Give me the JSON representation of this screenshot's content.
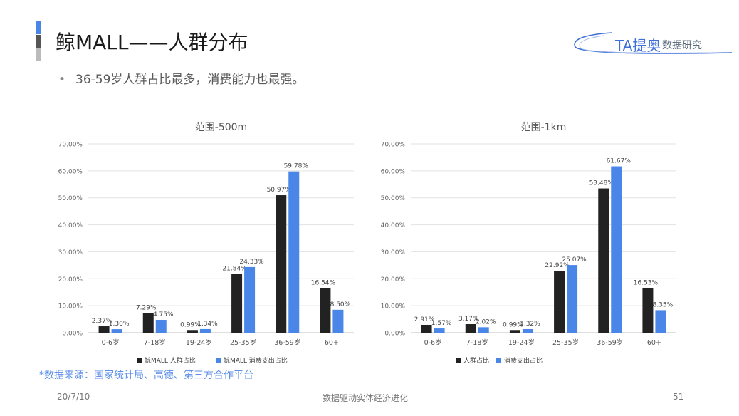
{
  "header": {
    "title": "鲸MALL——人群分布",
    "bullet": "36-59岁人群占比最多，消费能力也最强。",
    "accent_colors": [
      "#4a86e8",
      "#555555",
      "#bbbbbb"
    ]
  },
  "logo": {
    "main": "TA提奥",
    "sub": "数据研究",
    "color": "#3d6fd8"
  },
  "chart_data": [
    {
      "type": "bar",
      "title": "范围-500m",
      "categories": [
        "0-6岁",
        "7-18岁",
        "19-24岁",
        "25-35岁",
        "36-59岁",
        "60+"
      ],
      "series": [
        {
          "name": "鲸MALL 人群占比",
          "color": "#222222",
          "values": [
            2.37,
            7.29,
            0.99,
            21.84,
            50.97,
            16.54
          ],
          "labels": [
            "2.37%",
            "7.29%",
            "0.99%",
            "21.84%",
            "50.97%",
            "16.54%"
          ]
        },
        {
          "name": "鲸MALL 消费支出占比",
          "color": "#4a86e8",
          "values": [
            1.3,
            4.75,
            1.34,
            24.33,
            59.78,
            8.5
          ],
          "labels": [
            "1.30%",
            "4.75%",
            "1.34%",
            "24.33%",
            "59.78%",
            "8.50%"
          ]
        }
      ],
      "ylim": [
        0,
        70
      ],
      "yticks": [
        "0.00%",
        "10.00%",
        "20.00%",
        "30.00%",
        "40.00%",
        "50.00%",
        "60.00%",
        "70.00%"
      ],
      "grid": true,
      "legend": "bottom"
    },
    {
      "type": "bar",
      "title": "范围-1km",
      "categories": [
        "0-6岁",
        "7-18岁",
        "19-24岁",
        "25-35岁",
        "36-59岁",
        "60+"
      ],
      "series": [
        {
          "name": "人群占比",
          "color": "#222222",
          "values": [
            2.91,
            3.17,
            0.99,
            22.92,
            53.48,
            16.53
          ],
          "labels": [
            "2.91%",
            "3.17%",
            "0.99%",
            "22.92%",
            "53.48%",
            "16.53%"
          ]
        },
        {
          "name": "消费支出占比",
          "color": "#4a86e8",
          "values": [
            1.57,
            2.02,
            1.32,
            25.07,
            61.67,
            8.35
          ],
          "labels": [
            "1.57%",
            "2.02%",
            "1.32%",
            "25.07%",
            "61.67%",
            "8.35%"
          ]
        }
      ],
      "ylim": [
        0,
        70
      ],
      "yticks": [
        "0.00%",
        "10.00%",
        "20.00%",
        "30.00%",
        "40.00%",
        "50.00%",
        "60.00%",
        "70.00%"
      ],
      "grid": true,
      "legend": "bottom"
    }
  ],
  "source": "*数据来源：国家统计局、高德、第三方合作平台",
  "footer": {
    "date": "20/7/10",
    "center": "数据驱动实体经济进化",
    "page": "51"
  }
}
